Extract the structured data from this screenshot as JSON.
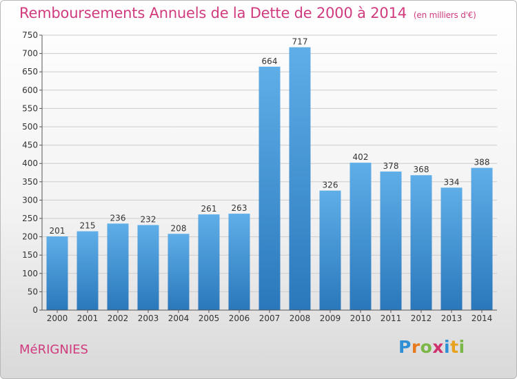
{
  "title": "Remboursements Annuels de la Dette de 2000 à 2014",
  "subtitle": "(en milliers d'€)",
  "location": "MéRIGNIES",
  "logo": {
    "text": "Proxiti",
    "letters": [
      "P",
      "r",
      "o",
      "x",
      "i",
      "t",
      "i"
    ],
    "colors": [
      "#2f8fd6",
      "#e87a1e",
      "#7ab648",
      "#d0306e",
      "#2f8fd6",
      "#e8a21e",
      "#7ab648"
    ]
  },
  "colors": {
    "title": "#d03b7e",
    "bar_light": "#5faee8",
    "bar_dark": "#2a78bb",
    "grid": "#cccccc",
    "axis": "#555555"
  },
  "chart_data": {
    "type": "bar",
    "title": "Remboursements Annuels de la Dette de 2000 à 2014",
    "subtitle": "(en milliers d'€)",
    "xlabel": "",
    "ylabel": "",
    "categories": [
      "2000",
      "2001",
      "2002",
      "2003",
      "2004",
      "2005",
      "2006",
      "2007",
      "2008",
      "2009",
      "2010",
      "2011",
      "2012",
      "2013",
      "2014"
    ],
    "values": [
      201,
      215,
      236,
      232,
      208,
      261,
      263,
      664,
      717,
      326,
      402,
      378,
      368,
      334,
      388
    ],
    "ylim": [
      0,
      750
    ],
    "yticks": [
      0,
      50,
      100,
      150,
      200,
      250,
      300,
      350,
      400,
      450,
      500,
      550,
      600,
      650,
      700,
      750
    ],
    "grid": true,
    "data_labels": true
  }
}
